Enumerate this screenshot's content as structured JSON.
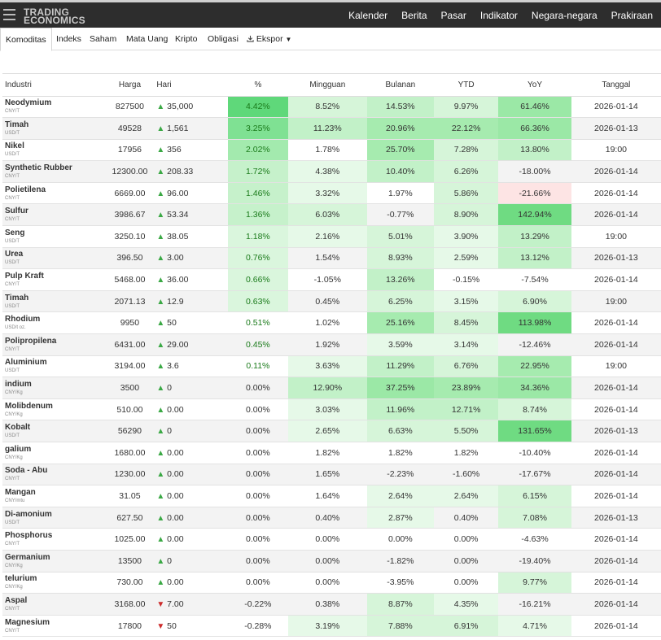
{
  "brand": {
    "line1": "TRADING",
    "line2": "ECONOMICS"
  },
  "nav": [
    "Kalender",
    "Berita",
    "Pasar",
    "Indikator",
    "Negara-negara",
    "Prakiraan"
  ],
  "tabs": [
    "Komoditas",
    "Indeks",
    "Saham",
    "Mata Uang",
    "Kripto",
    "Obligasi",
    "Ekspor"
  ],
  "icons": {
    "menu": "hamburger-icon",
    "export": "download-icon",
    "dropdown": "caret-down-icon",
    "up": "triangle-up-icon",
    "down": "triangle-down-icon"
  },
  "headers": [
    "Industri",
    "Harga",
    "Hari",
    "%",
    "Mingguan",
    "Bulanan",
    "YTD",
    "YoY",
    "Tanggal"
  ],
  "rows": [
    {
      "name": "Neodymium",
      "unit": "CNY/T",
      "price": "827500",
      "dir": "up",
      "day": "35,000",
      "pct": "4.42%",
      "week": "8.52%",
      "month": "14.53%",
      "ytd": "9.97%",
      "yoy": "61.46%",
      "date": "2026-01-14"
    },
    {
      "name": "Timah",
      "unit": "USD/T",
      "price": "49528",
      "dir": "up",
      "day": "1,561",
      "pct": "3.25%",
      "week": "11.23%",
      "month": "20.96%",
      "ytd": "22.12%",
      "yoy": "66.36%",
      "date": "2026-01-13"
    },
    {
      "name": "Nikel",
      "unit": "USD/T",
      "price": "17956",
      "dir": "up",
      "day": "356",
      "pct": "2.02%",
      "week": "1.78%",
      "month": "25.70%",
      "ytd": "7.28%",
      "yoy": "13.80%",
      "date": "19:00"
    },
    {
      "name": "Synthetic Rubber",
      "unit": "CNY/T",
      "price": "12300.00",
      "dir": "up",
      "day": "208.33",
      "pct": "1.72%",
      "week": "4.38%",
      "month": "10.40%",
      "ytd": "6.26%",
      "yoy": "-18.00%",
      "date": "2026-01-14"
    },
    {
      "name": "Polietilena",
      "unit": "CNY/T",
      "price": "6669.00",
      "dir": "up",
      "day": "96.00",
      "pct": "1.46%",
      "week": "3.32%",
      "month": "1.97%",
      "ytd": "5.86%",
      "yoy": "-21.66%",
      "date": "2026-01-14"
    },
    {
      "name": "Sulfur",
      "unit": "CNY/T",
      "price": "3986.67",
      "dir": "up",
      "day": "53.34",
      "pct": "1.36%",
      "week": "6.03%",
      "month": "-0.77%",
      "ytd": "8.90%",
      "yoy": "142.94%",
      "date": "2026-01-14"
    },
    {
      "name": "Seng",
      "unit": "USD/T",
      "price": "3250.10",
      "dir": "up",
      "day": "38.05",
      "pct": "1.18%",
      "week": "2.16%",
      "month": "5.01%",
      "ytd": "3.90%",
      "yoy": "13.29%",
      "date": "19:00"
    },
    {
      "name": "Urea",
      "unit": "USD/T",
      "price": "396.50",
      "dir": "up",
      "day": "3.00",
      "pct": "0.76%",
      "week": "1.54%",
      "month": "8.93%",
      "ytd": "2.59%",
      "yoy": "13.12%",
      "date": "2026-01-13"
    },
    {
      "name": "Pulp Kraft",
      "unit": "CNY/T",
      "price": "5468.00",
      "dir": "up",
      "day": "36.00",
      "pct": "0.66%",
      "week": "-1.05%",
      "month": "13.26%",
      "ytd": "-0.15%",
      "yoy": "-7.54%",
      "date": "2026-01-14"
    },
    {
      "name": "Timah",
      "unit": "USD/T",
      "price": "2071.13",
      "dir": "up",
      "day": "12.9",
      "pct": "0.63%",
      "week": "0.45%",
      "month": "6.25%",
      "ytd": "3.15%",
      "yoy": "6.90%",
      "date": "19:00"
    },
    {
      "name": "Rhodium",
      "unit": "USD/t oz.",
      "price": "9950",
      "dir": "up",
      "day": "50",
      "pct": "0.51%",
      "week": "1.02%",
      "month": "25.16%",
      "ytd": "8.45%",
      "yoy": "113.98%",
      "date": "2026-01-14"
    },
    {
      "name": "Polipropilena",
      "unit": "CNY/T",
      "price": "6431.00",
      "dir": "up",
      "day": "29.00",
      "pct": "0.45%",
      "week": "1.92%",
      "month": "3.59%",
      "ytd": "3.14%",
      "yoy": "-12.46%",
      "date": "2026-01-14"
    },
    {
      "name": "Aluminium",
      "unit": "USD/T",
      "price": "3194.00",
      "dir": "up",
      "day": "3.6",
      "pct": "0.11%",
      "week": "3.63%",
      "month": "11.29%",
      "ytd": "6.76%",
      "yoy": "22.95%",
      "date": "19:00"
    },
    {
      "name": "indium",
      "unit": "CNY/Kg",
      "price": "3500",
      "dir": "up",
      "day": "0",
      "pct": "0.00%",
      "week": "12.90%",
      "month": "37.25%",
      "ytd": "23.89%",
      "yoy": "34.36%",
      "date": "2026-01-14"
    },
    {
      "name": "Molibdenum",
      "unit": "CNY/Kg",
      "price": "510.00",
      "dir": "up",
      "day": "0.00",
      "pct": "0.00%",
      "week": "3.03%",
      "month": "11.96%",
      "ytd": "12.71%",
      "yoy": "8.74%",
      "date": "2026-01-14"
    },
    {
      "name": "Kobalt",
      "unit": "USD/T",
      "price": "56290",
      "dir": "up",
      "day": "0",
      "pct": "0.00%",
      "week": "2.65%",
      "month": "6.63%",
      "ytd": "5.50%",
      "yoy": "131.65%",
      "date": "2026-01-13"
    },
    {
      "name": "galium",
      "unit": "CNY/Kg",
      "price": "1680.00",
      "dir": "up",
      "day": "0.00",
      "pct": "0.00%",
      "week": "1.82%",
      "month": "1.82%",
      "ytd": "1.82%",
      "yoy": "-10.40%",
      "date": "2026-01-14"
    },
    {
      "name": "Soda - Abu",
      "unit": "CNY/T",
      "price": "1230.00",
      "dir": "up",
      "day": "0.00",
      "pct": "0.00%",
      "week": "1.65%",
      "month": "-2.23%",
      "ytd": "-1.60%",
      "yoy": "-17.67%",
      "date": "2026-01-14"
    },
    {
      "name": "Mangan",
      "unit": "CNY/mtu",
      "price": "31.05",
      "dir": "up",
      "day": "0.00",
      "pct": "0.00%",
      "week": "1.64%",
      "month": "2.64%",
      "ytd": "2.64%",
      "yoy": "6.15%",
      "date": "2026-01-14"
    },
    {
      "name": "Di-amonium",
      "unit": "USD/T",
      "price": "627.50",
      "dir": "up",
      "day": "0.00",
      "pct": "0.00%",
      "week": "0.40%",
      "month": "2.87%",
      "ytd": "0.40%",
      "yoy": "7.08%",
      "date": "2026-01-13"
    },
    {
      "name": "Phosphorus",
      "unit": "CNY/T",
      "price": "1025.00",
      "dir": "up",
      "day": "0.00",
      "pct": "0.00%",
      "week": "0.00%",
      "month": "0.00%",
      "ytd": "0.00%",
      "yoy": "-4.63%",
      "date": "2026-01-14"
    },
    {
      "name": "Germanium",
      "unit": "CNY/Kg",
      "price": "13500",
      "dir": "up",
      "day": "0",
      "pct": "0.00%",
      "week": "0.00%",
      "month": "-1.82%",
      "ytd": "0.00%",
      "yoy": "-19.40%",
      "date": "2026-01-14"
    },
    {
      "name": "telurium",
      "unit": "CNY/Kg",
      "price": "730.00",
      "dir": "up",
      "day": "0.00",
      "pct": "0.00%",
      "week": "0.00%",
      "month": "-3.95%",
      "ytd": "0.00%",
      "yoy": "9.77%",
      "date": "2026-01-14"
    },
    {
      "name": "Aspal",
      "unit": "CNY/T",
      "price": "3168.00",
      "dir": "down",
      "day": "7.00",
      "pct": "-0.22%",
      "week": "0.38%",
      "month": "8.87%",
      "ytd": "4.35%",
      "yoy": "-16.21%",
      "date": "2026-01-14"
    },
    {
      "name": "Magnesium",
      "unit": "CNY/T",
      "price": "17800",
      "dir": "down",
      "day": "50",
      "pct": "-0.28%",
      "week": "3.19%",
      "month": "7.88%",
      "ytd": "6.91%",
      "yoy": "4.71%",
      "date": "2026-01-14"
    }
  ]
}
